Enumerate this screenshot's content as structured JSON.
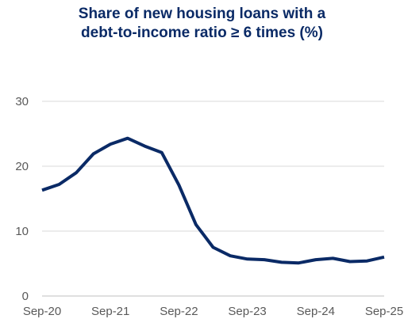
{
  "chart_data": {
    "type": "line",
    "title_lines": [
      "Share of new housing loans with  a",
      "debt-to-income ratio ≥ 6 times (%)"
    ],
    "xlabel": "",
    "ylabel": "",
    "ylim": [
      0,
      30
    ],
    "yticks": [
      "0",
      "10",
      "20",
      "30"
    ],
    "xticks": [
      "Sep-20",
      "Sep-21",
      "Sep-22",
      "Sep-23",
      "Sep-24",
      "Sep-25"
    ],
    "grid": true,
    "line_color": "#0a2a66",
    "series": [
      {
        "x": [
          "Sep-20",
          "Dec-20",
          "Mar-21",
          "Jun-21",
          "Sep-21",
          "Dec-21",
          "Mar-22",
          "Jun-22",
          "Sep-22",
          "Dec-22",
          "Mar-23",
          "Jun-23",
          "Sep-23",
          "Dec-23",
          "Mar-24",
          "Jun-24",
          "Sep-24",
          "Dec-24",
          "Mar-25",
          "Jun-25",
          "Sep-25"
        ],
        "values": [
          16.3,
          17.2,
          19.0,
          21.9,
          23.4,
          24.3,
          23.1,
          22.1,
          17.1,
          11.0,
          7.5,
          6.2,
          5.7,
          5.6,
          5.2,
          5.1,
          5.6,
          5.8,
          5.3,
          5.4,
          6.0
        ]
      }
    ]
  }
}
